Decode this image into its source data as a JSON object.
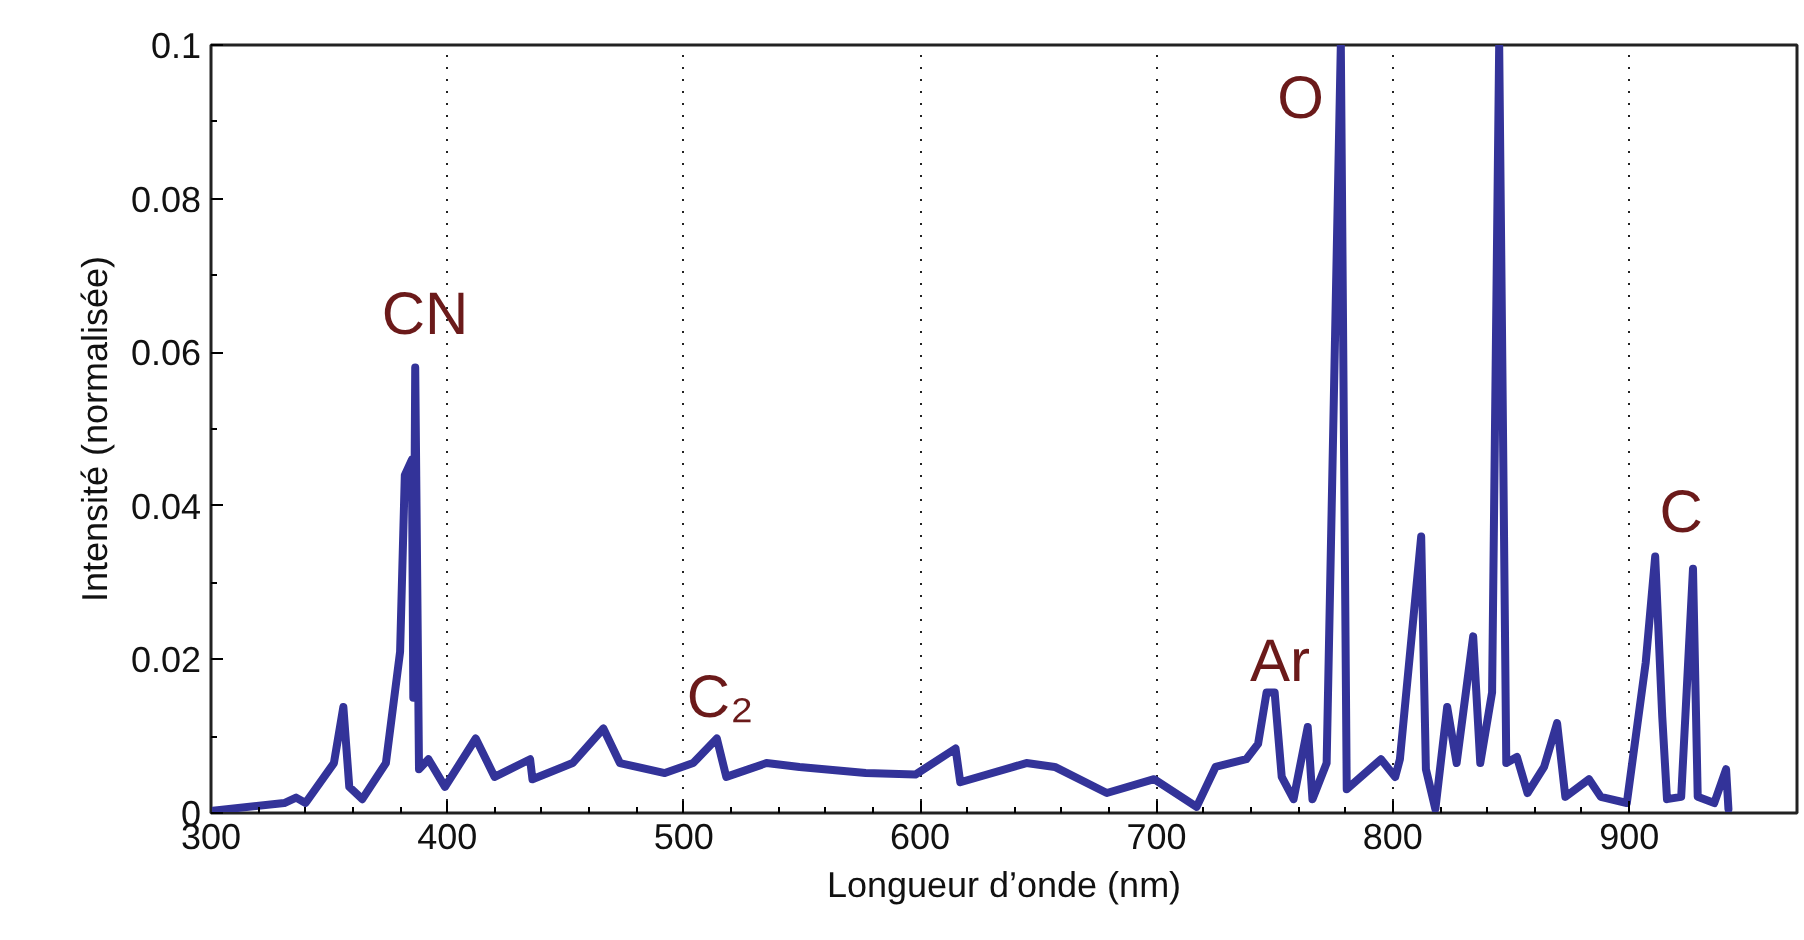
{
  "chart_data": {
    "type": "line",
    "xlabel": "Longueur d’onde (nm)",
    "ylabel": "Intensité (normalisée)",
    "xlim": [
      300,
      971
    ],
    "xticks": [
      300,
      400,
      500,
      600,
      700,
      800,
      900
    ],
    "ylim": [
      0,
      0.1
    ],
    "yticks": [
      0,
      0.02,
      0.04,
      0.06,
      0.08,
      0.1
    ],
    "grid": "x",
    "marker": "none",
    "line_style": "solid",
    "series": [
      {
        "color": "#333399",
        "x": [
          300.8,
          331,
          336,
          340,
          352,
          356,
          358.5,
          364,
          374,
          380,
          382,
          385,
          385.6,
          386.4,
          388,
          392,
          399,
          412,
          420,
          435,
          436,
          453,
          466,
          473,
          492,
          504,
          514,
          518,
          535,
          549,
          577,
          598,
          615,
          617,
          645,
          657,
          679,
          699,
          717,
          725,
          738,
          743,
          746.6,
          750,
          753,
          758,
          764,
          766,
          772,
          778,
          780.5,
          795,
          801,
          803,
          812,
          814,
          818,
          823,
          827,
          834,
          837,
          842,
          845,
          848,
          852.5,
          857,
          864,
          869.5,
          873,
          883,
          888,
          899,
          907,
          911,
          914,
          916,
          922,
          927,
          929,
          936,
          941,
          942
        ],
        "values": [
          0.0003,
          0.0013,
          0.002,
          0.0013,
          0.0065,
          0.0138,
          0.0034,
          0.0018,
          0.0065,
          0.021,
          0.044,
          0.046,
          0.015,
          0.058,
          0.0057,
          0.007,
          0.0034,
          0.0097,
          0.0047,
          0.007,
          0.0044,
          0.0065,
          0.011,
          0.0065,
          0.0052,
          0.0065,
          0.0097,
          0.0047,
          0.0065,
          0.006,
          0.0052,
          0.005,
          0.0084,
          0.004,
          0.0065,
          0.006,
          0.0026,
          0.0044,
          0.0008,
          0.006,
          0.007,
          0.009,
          0.0157,
          0.0157,
          0.0047,
          0.0018,
          0.0112,
          0.0018,
          0.0065,
          0.1,
          0.0031,
          0.007,
          0.0047,
          0.007,
          0.036,
          0.0057,
          0.0005,
          0.0138,
          0.0065,
          0.023,
          0.0065,
          0.0157,
          0.1,
          0.0065,
          0.0073,
          0.0026,
          0.006,
          0.0117,
          0.0021,
          0.0044,
          0.0021,
          0.0013,
          0.0196,
          0.0334,
          0.0125,
          0.0018,
          0.0021,
          0.0318,
          0.0021,
          0.0013,
          0.0057,
          0.0005
        ]
      }
    ],
    "annotations": [
      "CN",
      "C₂",
      "Ar",
      "O",
      "C"
    ]
  }
}
